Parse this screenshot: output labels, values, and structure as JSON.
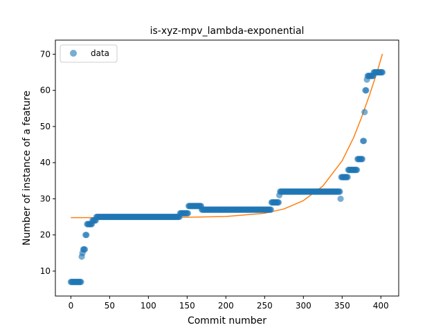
{
  "chart_data": {
    "type": "scatter",
    "title": "is-xyz-mpv_lambda-exponential",
    "xlabel": "Commit number",
    "ylabel": "Number of instance of a feature",
    "xlim": [
      -20,
      423
    ],
    "ylim": [
      3.1,
      73.9
    ],
    "xticks": [
      0,
      50,
      100,
      150,
      200,
      250,
      300,
      350,
      400
    ],
    "yticks": [
      10,
      20,
      30,
      40,
      50,
      60,
      70
    ],
    "grid": false,
    "legend": {
      "placement": "top-left",
      "entries": [
        "data"
      ]
    },
    "colors": {
      "data": "#1f77b4",
      "fit": "#ff7f0e"
    },
    "series": [
      {
        "name": "data",
        "kind": "scatter",
        "segments": [
          {
            "x0": 0,
            "x1": 13,
            "y": 7
          },
          {
            "x": 14,
            "y": 14
          },
          {
            "x": 15,
            "y": 15
          },
          {
            "x": 16,
            "y": 16
          },
          {
            "x": 17,
            "y": 16
          },
          {
            "x": 18,
            "y": 16
          },
          {
            "x": 19,
            "y": 20
          },
          {
            "x": 20,
            "y": 20
          },
          {
            "x0": 21,
            "x1": 27,
            "y": 23
          },
          {
            "x0": 28,
            "x1": 32,
            "y": 24
          },
          {
            "x0": 33,
            "x1": 140,
            "y": 25
          },
          {
            "x0": 141,
            "x1": 151,
            "y": 26
          },
          {
            "x0": 152,
            "x1": 168,
            "y": 28
          },
          {
            "x0": 169,
            "x1": 258,
            "y": 27
          },
          {
            "x0": 259,
            "x1": 268,
            "y": 29
          },
          {
            "x": 269,
            "y": 31
          },
          {
            "x0": 270,
            "x1": 347,
            "y": 32
          },
          {
            "x": 348,
            "y": 30
          },
          {
            "x0": 349,
            "x1": 357,
            "y": 36
          },
          {
            "x0": 358,
            "x1": 369,
            "y": 38
          },
          {
            "x0": 370,
            "x1": 376,
            "y": 41
          },
          {
            "x": 377,
            "y": 46
          },
          {
            "x": 378,
            "y": 46
          },
          {
            "x": 379,
            "y": 54
          },
          {
            "x": 380,
            "y": 60
          },
          {
            "x": 381,
            "y": 60
          },
          {
            "x": 382,
            "y": 63
          },
          {
            "x0": 383,
            "x1": 390,
            "y": 64
          },
          {
            "x0": 391,
            "x1": 402,
            "y": 65
          }
        ]
      },
      {
        "kind": "line",
        "model": "exponential",
        "x": [
          0,
          50,
          100,
          150,
          200,
          250,
          275,
          300,
          325,
          350,
          365,
          375,
          385,
          395,
          402
        ],
        "y": [
          24.8,
          24.8,
          24.8,
          24.9,
          25.1,
          26.0,
          27.2,
          29.5,
          33.5,
          40.5,
          47.0,
          52.5,
          58.5,
          65.0,
          70.1
        ]
      }
    ]
  }
}
